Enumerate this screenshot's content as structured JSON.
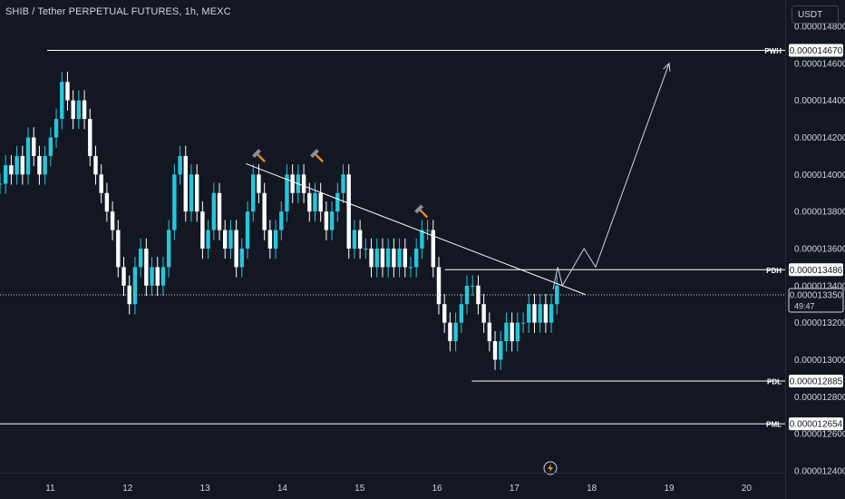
{
  "header": {
    "title": "SHIB / Tether PERPETUAL FUTURES, 1h, MEXC",
    "currency": "USDT"
  },
  "colors": {
    "background": "#131722",
    "up": "#26c6da",
    "down": "#ffffff",
    "line": "#ffffff",
    "text": "#d1d4dc"
  },
  "chart_data": {
    "type": "candlestick",
    "x_ticks": [
      "11",
      "12",
      "13",
      "14",
      "15",
      "16",
      "17",
      "18",
      "19",
      "20"
    ],
    "y_ticks": [
      "0.000014800",
      "0.000014600",
      "0.000014400",
      "0.000014200",
      "0.000014000",
      "0.000013800",
      "0.000013600",
      "0.000013400",
      "0.000013200",
      "0.000013000",
      "0.000012800",
      "0.000012600",
      "0.000012400"
    ],
    "ylim": [
      1.24e-05,
      1.48e-05
    ],
    "xlim": [
      10.35,
      20.5
    ],
    "levels": [
      {
        "label": "PWH",
        "value": "0.000014670",
        "y": 1.467e-05,
        "x_start": 10.96
      },
      {
        "label": "PDH",
        "value": "0.000013486",
        "y": 1.3486e-05,
        "x_start": 16.1
      },
      {
        "label": "PDL",
        "value": "0.000012885",
        "y": 1.2885e-05,
        "x_start": 16.45
      },
      {
        "label": "PML",
        "value": "0.000012654",
        "y": 1.2654e-05,
        "x_start": 10.35
      }
    ],
    "current_price": {
      "value": "0.000013350",
      "y": 1.335e-05,
      "countdown": "49:47"
    },
    "trendline": [
      [
        13.53,
        1.40584e-05
      ],
      [
        17.92,
        1.33513e-05
      ]
    ],
    "projection": [
      [
        17.5,
        1.338e-05
      ],
      [
        17.56,
        1.35e-05
      ],
      [
        17.62,
        1.34e-05
      ],
      [
        17.9,
        1.36e-05
      ],
      [
        18.05,
        1.35e-05
      ],
      [
        19.0,
        1.46e-05
      ]
    ],
    "annotations": [
      {
        "x": 13.7,
        "y": 1.41e-05
      },
      {
        "x": 14.45,
        "y": 1.41e-05
      },
      {
        "x": 15.8,
        "y": 1.38e-05
      }
    ],
    "candles_close": [
      1.395e-05,
      1.405e-05,
      1.4e-05,
      1.41e-05,
      1.4e-05,
      1.42e-05,
      1.41e-05,
      1.4e-05,
      1.41e-05,
      1.42e-05,
      1.43e-05,
      1.45e-05,
      1.44e-05,
      1.43e-05,
      1.44e-05,
      1.43e-05,
      1.41e-05,
      1.4e-05,
      1.39e-05,
      1.38e-05,
      1.37e-05,
      1.35e-05,
      1.34e-05,
      1.33e-05,
      1.35e-05,
      1.36e-05,
      1.34e-05,
      1.35e-05,
      1.34e-05,
      1.35e-05,
      1.37e-05,
      1.4e-05,
      1.41e-05,
      1.38e-05,
      1.4e-05,
      1.38e-05,
      1.36e-05,
      1.37e-05,
      1.39e-05,
      1.37e-05,
      1.36e-05,
      1.37e-05,
      1.35e-05,
      1.36e-05,
      1.38e-05,
      1.4e-05,
      1.39e-05,
      1.37e-05,
      1.36e-05,
      1.37e-05,
      1.38e-05,
      1.4e-05,
      1.39e-05,
      1.4e-05,
      1.39e-05,
      1.38e-05,
      1.39e-05,
      1.38e-05,
      1.37e-05,
      1.38e-05,
      1.39e-05,
      1.4e-05,
      1.36e-05,
      1.37e-05,
      1.36e-05,
      1.36e-05,
      1.35e-05,
      1.36e-05,
      1.35e-05,
      1.36e-05,
      1.35e-05,
      1.36e-05,
      1.35e-05,
      1.35e-05,
      1.36e-05,
      1.37e-05,
      1.37e-05,
      1.35e-05,
      1.33e-05,
      1.32e-05,
      1.31e-05,
      1.32e-05,
      1.33e-05,
      1.34e-05,
      1.34e-05,
      1.33e-05,
      1.32e-05,
      1.31e-05,
      1.3e-05,
      1.31e-05,
      1.32e-05,
      1.31e-05,
      1.32e-05,
      1.32e-05,
      1.33e-05,
      1.32e-05,
      1.33e-05,
      1.32e-05,
      1.33e-05,
      1.34e-05
    ]
  }
}
